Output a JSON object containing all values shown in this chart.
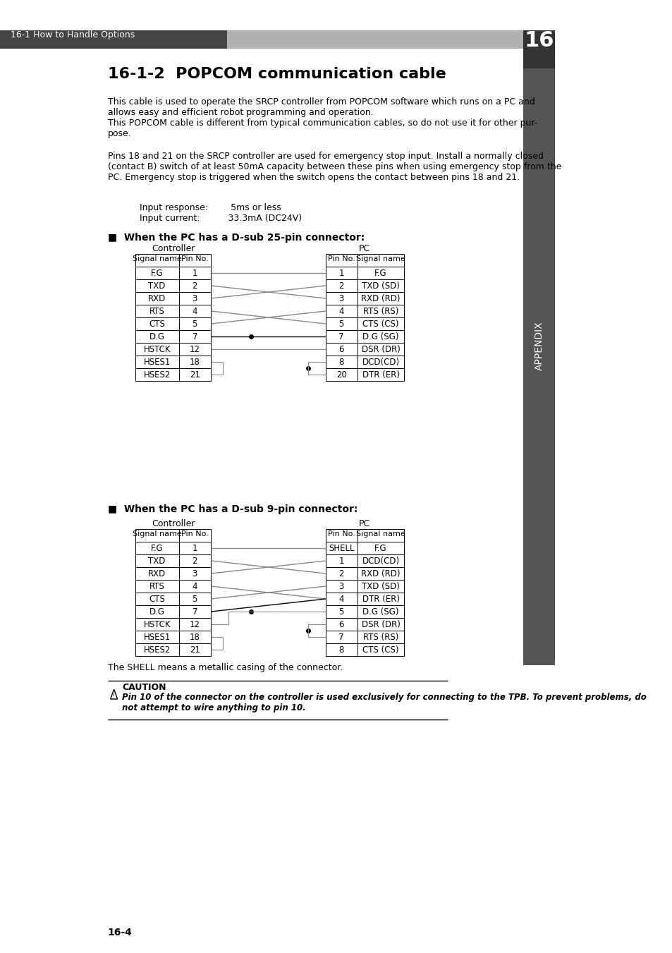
{
  "page_title": "16-1-2  POPCOM communication cable",
  "header_text": "16-1 How to Handle Options",
  "header_bg": "#444444",
  "header_gray_bg": "#aaaaaa",
  "body_bg": "#ffffff",
  "para1": "This cable is used to operate the SRCP controller from POPCOM software which runs on a PC and\nallows easy and efficient robot programming and operation.\nThis POPCOM cable is different from typical communication cables, so do not use it for other pur-\npose.",
  "para2": "Pins 18 and 21 on the SRCP controller are used for emergency stop input. Install a normally closed\n(contact B) switch of at least 50mA capacity between these pins when using emergency stop from the\nPC. Emergency stop is triggered when the switch opens the contact between pins 18 and 21.",
  "input_response": "Input response:        5ms or less",
  "input_current": "Input current:          33.3mA (DC24V)",
  "section25_title": "■  When the PC has a D-sub 25-pin connector:",
  "section9_title": "■  When the PC has a D-sub 9-pin connector:",
  "ctrl_label": "Controller",
  "pc_label": "PC",
  "table25_ctrl": [
    [
      "Signal name",
      "Pin No."
    ],
    [
      "F.G",
      "1"
    ],
    [
      "TXD",
      "2"
    ],
    [
      "RXD",
      "3"
    ],
    [
      "RTS",
      "4"
    ],
    [
      "CTS",
      "5"
    ],
    [
      "D.G",
      "7"
    ],
    [
      "HSTCK",
      "12"
    ],
    [
      "HSES1",
      "18"
    ],
    [
      "HSES2",
      "21"
    ]
  ],
  "table25_pc": [
    [
      "Pin No.",
      "Signal name"
    ],
    [
      "1",
      "F.G"
    ],
    [
      "2",
      "TXD (SD)"
    ],
    [
      "3",
      "RXD (RD)"
    ],
    [
      "4",
      "RTS (RS)"
    ],
    [
      "5",
      "CTS (CS)"
    ],
    [
      "7",
      "D.G (SG)"
    ],
    [
      "6",
      "DSR (DR)"
    ],
    [
      "8",
      "DCD(CD)"
    ],
    [
      "20",
      "DTR (ER)"
    ]
  ],
  "table9_ctrl": [
    [
      "Signal name",
      "Pin No."
    ],
    [
      "F.G",
      "1"
    ],
    [
      "TXD",
      "2"
    ],
    [
      "RXD",
      "3"
    ],
    [
      "RTS",
      "4"
    ],
    [
      "CTS",
      "5"
    ],
    [
      "D.G",
      "7"
    ],
    [
      "HSTCK",
      "12"
    ],
    [
      "HSES1",
      "18"
    ],
    [
      "HSES2",
      "21"
    ]
  ],
  "table9_pc": [
    [
      "Pin No.",
      "Signal name"
    ],
    [
      "SHELL",
      "F.G"
    ],
    [
      "1",
      "DCD(CD)"
    ],
    [
      "2",
      "RXD (RD)"
    ],
    [
      "3",
      "TXD (SD)"
    ],
    [
      "4",
      "DTR (ER)"
    ],
    [
      "5",
      "D.G (SG)"
    ],
    [
      "6",
      "DSR (DR)"
    ],
    [
      "7",
      "RTS (RS)"
    ],
    [
      "8",
      "CTS (CS)"
    ]
  ],
  "shell_note": "The SHELL means a metallic casing of the connector.",
  "caution_title": "CAUTION",
  "caution_text": "Pin 10 of the connector on the controller is used exclusively for connecting to the TPB. To prevent problems, do\nnot attempt to wire anything to pin 10.",
  "appendix_label": "APPENDIX",
  "chapter_num": "16",
  "page_num": "16-4",
  "right_side_bg": "#555555"
}
